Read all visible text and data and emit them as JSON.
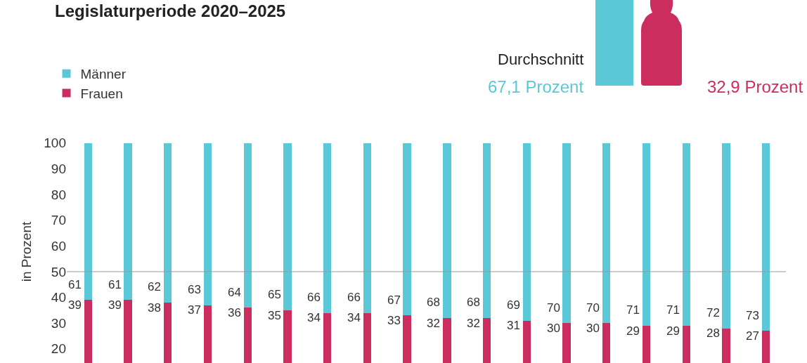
{
  "chart_data": {
    "type": "bar",
    "stacked": true,
    "title": "Legislaturperiode 2020–2025",
    "ylabel": "in Prozent",
    "categories": [
      null,
      null,
      null,
      null,
      null,
      null,
      null,
      null,
      null,
      null,
      null,
      null,
      null,
      null,
      null,
      null,
      null,
      null
    ],
    "series": [
      {
        "name": "Frauen",
        "color": "#cc2d5f",
        "values": [
          39,
          39,
          38,
          37,
          36,
          35,
          34,
          34,
          33,
          32,
          32,
          31,
          30,
          30,
          29,
          29,
          28,
          27
        ]
      },
      {
        "name": "Männer",
        "color": "#5bc8d8",
        "values": [
          61,
          61,
          62,
          63,
          64,
          65,
          66,
          66,
          67,
          68,
          68,
          69,
          70,
          70,
          71,
          71,
          72,
          73
        ]
      }
    ],
    "data_labels": true,
    "ylim": [
      14.5,
      101
    ],
    "yticks": [
      20,
      30,
      40,
      50,
      60,
      70,
      80,
      90,
      100
    ],
    "tick_labels": "y",
    "grid": false,
    "legend": "top left",
    "ref_lines": [
      {
        "axis": "y",
        "value": 50,
        "color": "#999999"
      }
    ],
    "annotations": [
      "Durchschnitt",
      "67,1 Prozent",
      "32,9 Prozent"
    ]
  }
}
